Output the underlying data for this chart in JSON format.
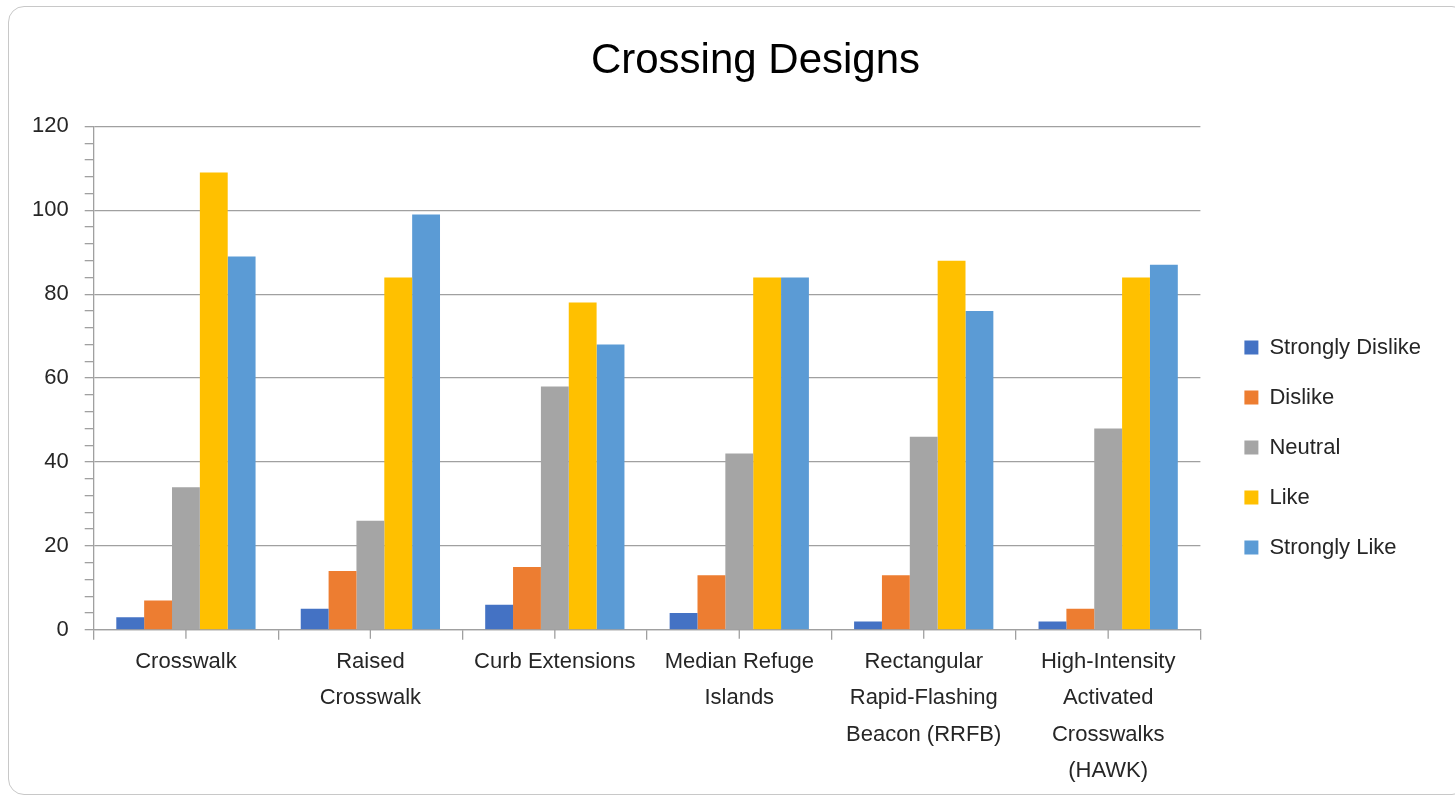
{
  "chart_data": {
    "type": "bar",
    "title": "Crossing Designs",
    "categories": [
      "Crosswalk",
      "Raised Crosswalk",
      "Curb Extensions",
      "Median Refuge Islands",
      "Rectangular Rapid-Flashing Beacon (RRFB)",
      "High-Intensity Activated Crosswalks (HAWK)"
    ],
    "series": [
      {
        "name": "Strongly Dislike",
        "color": "#4472c4",
        "values": [
          3,
          5,
          6,
          4,
          2,
          2
        ]
      },
      {
        "name": "Dislike",
        "color": "#ed7d31",
        "values": [
          7,
          14,
          15,
          13,
          13,
          5
        ]
      },
      {
        "name": "Neutral",
        "color": "#a5a5a5",
        "values": [
          34,
          26,
          58,
          42,
          46,
          48
        ]
      },
      {
        "name": "Like",
        "color": "#ffc000",
        "values": [
          109,
          84,
          78,
          84,
          88,
          84
        ]
      },
      {
        "name": "Strongly Like",
        "color": "#5b9bd5",
        "values": [
          89,
          99,
          68,
          84,
          76,
          87
        ]
      }
    ],
    "ylim": [
      0,
      120
    ],
    "yticks": [
      0,
      {
        "value": 4,
        "label": null
      },
      {
        "value": 8,
        "label": null
      },
      {
        "value": 12,
        "label": null
      },
      {
        "value": 16,
        "label": null
      },
      20,
      {
        "value": 24,
        "label": null
      },
      {
        "value": 28,
        "label": null
      },
      {
        "value": 32,
        "label": null
      },
      {
        "value": 36,
        "label": null
      },
      40,
      {
        "value": 44,
        "label": null
      },
      {
        "value": 48,
        "label": null
      },
      {
        "value": 52,
        "label": null
      },
      {
        "value": 56,
        "label": null
      },
      60,
      {
        "value": 64,
        "label": null
      },
      {
        "value": 68,
        "label": null
      },
      {
        "value": 72,
        "label": null
      },
      {
        "value": 76,
        "label": null
      },
      80,
      {
        "value": 84,
        "label": null
      },
      {
        "value": 88,
        "label": null
      },
      {
        "value": 92,
        "label": null
      },
      {
        "value": 96,
        "label": null
      },
      100,
      {
        "value": 104,
        "label": null
      },
      {
        "value": 108,
        "label": null
      },
      {
        "value": 112,
        "label": null
      },
      {
        "value": 116,
        "label": null
      },
      120
    ],
    "grid": "y",
    "legend": "right"
  }
}
